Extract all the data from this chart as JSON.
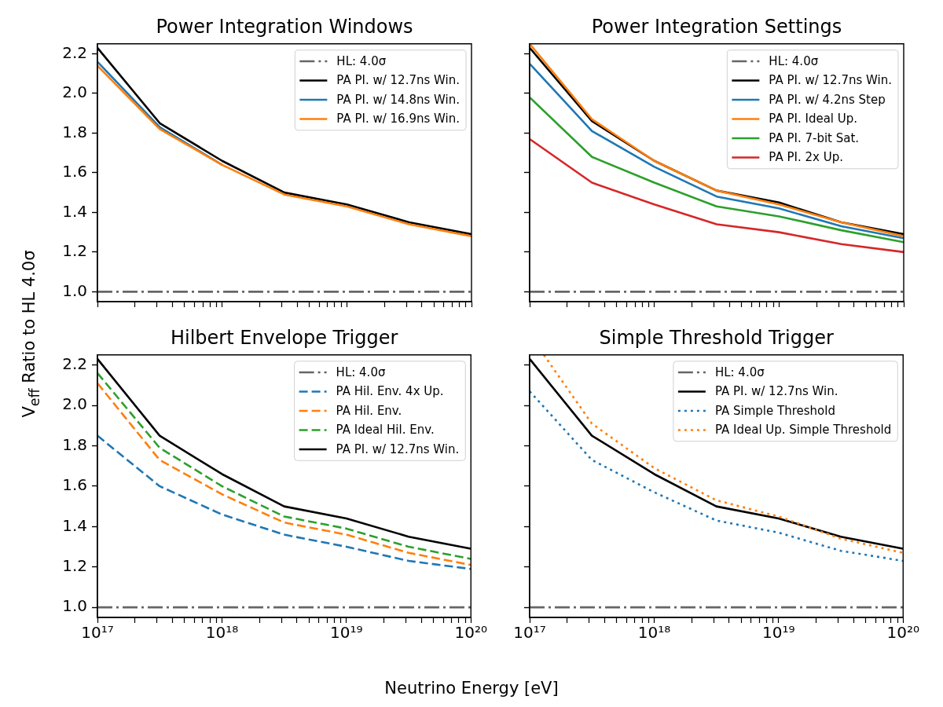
{
  "chart_data": [
    {
      "type": "line",
      "title": "Power Integration Windows",
      "ylabel": "V$_{eff}$ Ratio to HL 4.0σ",
      "log": "x",
      "legend": "top right",
      "tick_labels": "y",
      "x": [
        1e+17,
        3.16e+17,
        1e+18,
        3.16e+18,
        1e+19,
        3.16e+19,
        1e+20
      ],
      "xlim": [
        1e+17,
        1e+20
      ],
      "xticks": [
        {
          "value": 1e+17,
          "label": null
        },
        {
          "value": 2e+17,
          "label": null
        },
        {
          "value": 3e+17,
          "label": null
        },
        {
          "value": 4e+17,
          "label": null
        },
        {
          "value": 5e+17,
          "label": null
        },
        {
          "value": 6e+17,
          "label": null
        },
        {
          "value": 7e+17,
          "label": null
        },
        {
          "value": 8e+17,
          "label": null
        },
        {
          "value": 9e+17,
          "label": null
        },
        {
          "value": 1e+18,
          "label": null
        },
        {
          "value": 2e+18,
          "label": null
        },
        {
          "value": 3e+18,
          "label": null
        },
        {
          "value": 4e+18,
          "label": null
        },
        {
          "value": 5e+18,
          "label": null
        },
        {
          "value": 6e+18,
          "label": null
        },
        {
          "value": 7e+18,
          "label": null
        },
        {
          "value": 8e+18,
          "label": null
        },
        {
          "value": 9e+18,
          "label": null
        },
        {
          "value": 1e+19,
          "label": null
        },
        {
          "value": 2e+19,
          "label": null
        },
        {
          "value": 3e+19,
          "label": null
        },
        {
          "value": 4e+19,
          "label": null
        },
        {
          "value": 5e+19,
          "label": null
        },
        {
          "value": 6e+19,
          "label": null
        },
        {
          "value": 7e+19,
          "label": null
        },
        {
          "value": 8e+19,
          "label": null
        },
        {
          "value": 9e+19,
          "label": null
        },
        {
          "value": 1e+20,
          "label": null
        }
      ],
      "ylim": [
        0.95,
        2.25
      ],
      "yticks": [
        {
          "value": 1,
          "label": "1.0"
        },
        1.2,
        1.4,
        1.6,
        1.8,
        {
          "value": 2,
          "label": "2.0"
        },
        2.2
      ],
      "series": [
        {
          "name": "HL: 4.0σ",
          "color": "#666666",
          "line_style": "dashdot",
          "values": [
            1,
            1,
            1,
            1,
            1,
            1,
            1
          ]
        },
        {
          "name": "PA PI. w/ 12.7ns Win.",
          "color": "#000000",
          "values": [
            2.23,
            1.85,
            1.66,
            1.5,
            1.44,
            1.35,
            1.29
          ]
        },
        {
          "name": "PA PI. w/ 14.8ns Win.",
          "color": "#1f77b4",
          "values": [
            2.16,
            1.83,
            1.64,
            null,
            null,
            null,
            null
          ]
        },
        {
          "name": "PA PI. w/ 16.9ns Win.",
          "color": "#ff7f0e",
          "values": [
            2.14,
            1.82,
            1.64,
            1.49,
            1.43,
            1.34,
            1.28
          ]
        }
      ]
    },
    {
      "type": "line",
      "title": "Power Integration Settings",
      "log": "x",
      "legend": "top right",
      "tick_labels": false,
      "x": [
        1e+17,
        3.16e+17,
        1e+18,
        3.16e+18,
        1e+19,
        3.16e+19,
        1e+20
      ],
      "xlim": [
        1e+17,
        1e+20
      ],
      "xticks": [
        {
          "value": 1e+17,
          "label": null
        },
        {
          "value": 2e+17,
          "label": null
        },
        {
          "value": 3e+17,
          "label": null
        },
        {
          "value": 4e+17,
          "label": null
        },
        {
          "value": 5e+17,
          "label": null
        },
        {
          "value": 6e+17,
          "label": null
        },
        {
          "value": 7e+17,
          "label": null
        },
        {
          "value": 8e+17,
          "label": null
        },
        {
          "value": 9e+17,
          "label": null
        },
        {
          "value": 1e+18,
          "label": null
        },
        {
          "value": 2e+18,
          "label": null
        },
        {
          "value": 3e+18,
          "label": null
        },
        {
          "value": 4e+18,
          "label": null
        },
        {
          "value": 5e+18,
          "label": null
        },
        {
          "value": 6e+18,
          "label": null
        },
        {
          "value": 7e+18,
          "label": null
        },
        {
          "value": 8e+18,
          "label": null
        },
        {
          "value": 9e+18,
          "label": null
        },
        {
          "value": 1e+19,
          "label": null
        },
        {
          "value": 2e+19,
          "label": null
        },
        {
          "value": 3e+19,
          "label": null
        },
        {
          "value": 4e+19,
          "label": null
        },
        {
          "value": 5e+19,
          "label": null
        },
        {
          "value": 6e+19,
          "label": null
        },
        {
          "value": 7e+19,
          "label": null
        },
        {
          "value": 8e+19,
          "label": null
        },
        {
          "value": 9e+19,
          "label": null
        },
        {
          "value": 1e+20,
          "label": null
        }
      ],
      "ylim": [
        0.95,
        2.25
      ],
      "yticks": [
        {
          "value": 1,
          "label": null
        },
        {
          "value": 1.2,
          "label": null
        },
        {
          "value": 1.4,
          "label": null
        },
        {
          "value": 1.6,
          "label": null
        },
        {
          "value": 1.8,
          "label": null
        },
        {
          "value": 2,
          "label": null
        },
        {
          "value": 2.2,
          "label": null
        }
      ],
      "series": [
        {
          "name": "HL: 4.0σ",
          "color": "#666666",
          "line_style": "dashdot",
          "values": [
            1,
            1,
            1,
            1,
            1,
            1,
            1
          ]
        },
        {
          "name": "PA PI. w/ 12.7ns Win.",
          "color": "#000000",
          "values": [
            2.23,
            1.86,
            1.66,
            1.51,
            1.45,
            1.35,
            1.29
          ]
        },
        {
          "name": "PA PI. w/ 4.2ns Step",
          "color": "#1f77b4",
          "values": [
            2.15,
            1.81,
            1.63,
            1.48,
            1.42,
            1.33,
            1.27
          ]
        },
        {
          "name": "PA PI. Ideal Up.",
          "color": "#ff7f0e",
          "values": [
            2.25,
            1.87,
            1.66,
            1.51,
            1.44,
            1.35,
            1.28
          ]
        },
        {
          "name": "PA PI. 7-bit Sat.",
          "color": "#2ca02c",
          "values": [
            1.98,
            1.68,
            1.55,
            1.43,
            1.38,
            1.31,
            1.25
          ]
        },
        {
          "name": "PA PI. 2x Up.",
          "color": "#d62728",
          "values": [
            1.77,
            1.55,
            1.44,
            1.34,
            1.3,
            1.24,
            1.2
          ]
        }
      ]
    },
    {
      "type": "line",
      "title": "Hilbert Envelope Trigger",
      "xlabel": "Neutrino Energy [eV]",
      "log": "x",
      "legend": "top right",
      "x": [
        1e+17,
        3.16e+17,
        1e+18,
        3.16e+18,
        1e+19,
        3.16e+19,
        1e+20
      ],
      "xlim": [
        1e+17,
        1e+20
      ],
      "xticks": [
        {
          "value": 1e+17,
          "label": "10¹⁷"
        },
        {
          "value": 2e+17,
          "label": null
        },
        {
          "value": 3e+17,
          "label": null
        },
        {
          "value": 4e+17,
          "label": null
        },
        {
          "value": 5e+17,
          "label": null
        },
        {
          "value": 6e+17,
          "label": null
        },
        {
          "value": 7e+17,
          "label": null
        },
        {
          "value": 8e+17,
          "label": null
        },
        {
          "value": 9e+17,
          "label": null
        },
        {
          "value": 1e+18,
          "label": "10¹⁸"
        },
        {
          "value": 2e+18,
          "label": null
        },
        {
          "value": 3e+18,
          "label": null
        },
        {
          "value": 4e+18,
          "label": null
        },
        {
          "value": 5e+18,
          "label": null
        },
        {
          "value": 6e+18,
          "label": null
        },
        {
          "value": 7e+18,
          "label": null
        },
        {
          "value": 8e+18,
          "label": null
        },
        {
          "value": 9e+18,
          "label": null
        },
        {
          "value": 1e+19,
          "label": "10¹⁹"
        },
        {
          "value": 2e+19,
          "label": null
        },
        {
          "value": 3e+19,
          "label": null
        },
        {
          "value": 4e+19,
          "label": null
        },
        {
          "value": 5e+19,
          "label": null
        },
        {
          "value": 6e+19,
          "label": null
        },
        {
          "value": 7e+19,
          "label": null
        },
        {
          "value": 8e+19,
          "label": null
        },
        {
          "value": 9e+19,
          "label": null
        },
        {
          "value": 1e+20,
          "label": "10²⁰"
        }
      ],
      "ylim": [
        0.95,
        2.25
      ],
      "yticks": [
        {
          "value": 1,
          "label": "1.0"
        },
        1.2,
        1.4,
        1.6,
        1.8,
        {
          "value": 2,
          "label": "2.0"
        },
        2.2
      ],
      "series": [
        {
          "name": "HL: 4.0σ",
          "color": "#666666",
          "line_style": "dashdot",
          "values": [
            1,
            1,
            1,
            1,
            1,
            1,
            1
          ]
        },
        {
          "name": "PA Hil. Env. 4x Up.",
          "color": "#1f77b4",
          "line_style": "dashed",
          "values": [
            1.85,
            1.6,
            1.46,
            1.36,
            1.3,
            1.23,
            1.19
          ]
        },
        {
          "name": "PA Hil. Env.",
          "color": "#ff7f0e",
          "line_style": "dashed",
          "values": [
            2.11,
            1.73,
            1.56,
            1.42,
            1.36,
            1.27,
            1.21
          ]
        },
        {
          "name": "PA Ideal Hil. Env.",
          "color": "#2ca02c",
          "line_style": "dashed",
          "values": [
            2.16,
            1.79,
            1.6,
            1.45,
            1.39,
            1.3,
            1.24
          ]
        },
        {
          "name": "PA PI. w/ 12.7ns Win.",
          "color": "#000000",
          "values": [
            2.23,
            1.85,
            1.66,
            1.5,
            1.44,
            1.35,
            1.29
          ]
        }
      ]
    },
    {
      "type": "line",
      "title": "Simple Threshold Trigger",
      "log": "x",
      "legend": "top right",
      "tick_labels": "x",
      "x": [
        1e+17,
        3.16e+17,
        1e+18,
        3.16e+18,
        1e+19,
        3.16e+19,
        1e+20
      ],
      "xlim": [
        1e+17,
        1e+20
      ],
      "xticks": [
        {
          "value": 1e+17,
          "label": "10¹⁷"
        },
        {
          "value": 2e+17,
          "label": null
        },
        {
          "value": 3e+17,
          "label": null
        },
        {
          "value": 4e+17,
          "label": null
        },
        {
          "value": 5e+17,
          "label": null
        },
        {
          "value": 6e+17,
          "label": null
        },
        {
          "value": 7e+17,
          "label": null
        },
        {
          "value": 8e+17,
          "label": null
        },
        {
          "value": 9e+17,
          "label": null
        },
        {
          "value": 1e+18,
          "label": "10¹⁸"
        },
        {
          "value": 2e+18,
          "label": null
        },
        {
          "value": 3e+18,
          "label": null
        },
        {
          "value": 4e+18,
          "label": null
        },
        {
          "value": 5e+18,
          "label": null
        },
        {
          "value": 6e+18,
          "label": null
        },
        {
          "value": 7e+18,
          "label": null
        },
        {
          "value": 8e+18,
          "label": null
        },
        {
          "value": 9e+18,
          "label": null
        },
        {
          "value": 1e+19,
          "label": "10¹⁹"
        },
        {
          "value": 2e+19,
          "label": null
        },
        {
          "value": 3e+19,
          "label": null
        },
        {
          "value": 4e+19,
          "label": null
        },
        {
          "value": 5e+19,
          "label": null
        },
        {
          "value": 6e+19,
          "label": null
        },
        {
          "value": 7e+19,
          "label": null
        },
        {
          "value": 8e+19,
          "label": null
        },
        {
          "value": 9e+19,
          "label": null
        },
        {
          "value": 1e+20,
          "label": "10²⁰"
        }
      ],
      "ylim": [
        0.95,
        2.25
      ],
      "yticks": [
        {
          "value": 1,
          "label": null
        },
        {
          "value": 1.2,
          "label": null
        },
        {
          "value": 1.4,
          "label": null
        },
        {
          "value": 1.6,
          "label": null
        },
        {
          "value": 1.8,
          "label": null
        },
        {
          "value": 2,
          "label": null
        },
        {
          "value": 2.2,
          "label": null
        }
      ],
      "series": [
        {
          "name": "HL: 4.0σ",
          "color": "#666666",
          "line_style": "dashdot",
          "values": [
            1,
            1,
            1,
            1,
            1,
            1,
            1
          ]
        },
        {
          "name": "PA PI. w/ 12.7ns Win.",
          "color": "#000000",
          "values": [
            2.23,
            1.85,
            1.66,
            1.5,
            1.44,
            1.35,
            1.29
          ]
        },
        {
          "name": "PA Simple Threshold",
          "color": "#1f77b4",
          "line_style": "dotted",
          "values": [
            2.07,
            1.73,
            1.57,
            1.43,
            1.37,
            1.28,
            1.23
          ]
        },
        {
          "name": "PA Ideal Up. Simple Threshold",
          "color": "#ff7f0e",
          "line_style": "dotted",
          "x": [
            1.3e+17,
            3.16e+17,
            1e+18,
            3.16e+18,
            1e+19,
            3.16e+19,
            1e+20
          ],
          "values": [
            2.25,
            1.91,
            1.69,
            1.53,
            1.45,
            1.34,
            1.27
          ]
        }
      ]
    }
  ]
}
